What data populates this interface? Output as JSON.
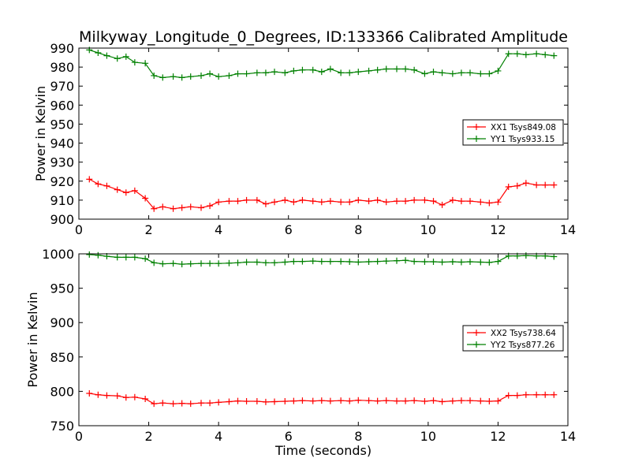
{
  "chart_data": [
    {
      "type": "line",
      "title": "Milkyway_Longitude_0_Degrees, ID:133366 Calibrated Amplitude",
      "xlabel": "",
      "ylabel": "Power in Kelvin",
      "xlim": [
        0,
        14
      ],
      "ylim": [
        900,
        990
      ],
      "xticks": [
        0,
        2,
        4,
        6,
        8,
        10,
        12,
        14
      ],
      "yticks": [
        900,
        910,
        920,
        930,
        940,
        950,
        960,
        970,
        980,
        990
      ],
      "grid": false,
      "legend_position": "center-right",
      "x": [
        0.3,
        0.55,
        0.8,
        1.1,
        1.35,
        1.6,
        1.9,
        2.15,
        2.4,
        2.7,
        2.95,
        3.2,
        3.5,
        3.75,
        4.0,
        4.3,
        4.55,
        4.8,
        5.1,
        5.35,
        5.6,
        5.9,
        6.15,
        6.4,
        6.7,
        6.95,
        7.2,
        7.5,
        7.75,
        8.0,
        8.3,
        8.55,
        8.8,
        9.1,
        9.35,
        9.6,
        9.9,
        10.15,
        10.4,
        10.7,
        10.95,
        11.2,
        11.5,
        11.75,
        12.0,
        12.3,
        12.55,
        12.8,
        13.1,
        13.35,
        13.6
      ],
      "series": [
        {
          "name": "XX1 Tsys849.08",
          "color": "#ff0000",
          "values": [
            921,
            918.5,
            917.5,
            915.5,
            914,
            915,
            911,
            905.5,
            906.5,
            905.5,
            906,
            906.5,
            906,
            907,
            909,
            909.5,
            909.5,
            910,
            910,
            908,
            909,
            910,
            909,
            910,
            909.5,
            909,
            909.5,
            909,
            909,
            910,
            909.5,
            910,
            909,
            909.5,
            909.5,
            910,
            910,
            909.5,
            907.5,
            910,
            909.5,
            909.5,
            909,
            908.5,
            909,
            917,
            917.5,
            919,
            918,
            918,
            918
          ]
        },
        {
          "name": "YY1 Tsys933.15",
          "color": "#008000",
          "values": [
            989,
            987.5,
            986,
            984.5,
            985.5,
            982.5,
            982,
            975.5,
            974.5,
            975,
            974.5,
            975,
            975.5,
            976.5,
            975,
            975.5,
            976.5,
            976.5,
            977,
            977,
            977.5,
            977,
            978,
            978.5,
            978.5,
            977.5,
            979,
            977,
            977,
            977.5,
            978,
            978.5,
            979,
            979,
            979,
            978.5,
            976.5,
            977.5,
            977,
            976.5,
            977,
            977,
            976.5,
            976.5,
            978,
            987,
            987,
            986.5,
            987,
            986.5,
            986
          ]
        }
      ]
    },
    {
      "type": "line",
      "title": "",
      "xlabel": "Time (seconds)",
      "ylabel": "Power in Kelvin",
      "xlim": [
        0,
        14
      ],
      "ylim": [
        750,
        1000
      ],
      "xticks": [
        0,
        2,
        4,
        6,
        8,
        10,
        12,
        14
      ],
      "yticks": [
        750,
        800,
        850,
        900,
        950,
        1000
      ],
      "grid": false,
      "legend_position": "center-right",
      "x": [
        0.3,
        0.55,
        0.8,
        1.1,
        1.35,
        1.6,
        1.9,
        2.15,
        2.4,
        2.7,
        2.95,
        3.2,
        3.5,
        3.75,
        4.0,
        4.3,
        4.55,
        4.8,
        5.1,
        5.35,
        5.6,
        5.9,
        6.15,
        6.4,
        6.7,
        6.95,
        7.2,
        7.5,
        7.75,
        8.0,
        8.3,
        8.55,
        8.8,
        9.1,
        9.35,
        9.6,
        9.9,
        10.15,
        10.4,
        10.7,
        10.95,
        11.2,
        11.5,
        11.75,
        12.0,
        12.3,
        12.55,
        12.8,
        13.1,
        13.35,
        13.6
      ],
      "series": [
        {
          "name": "XX2 Tsys738.64",
          "color": "#ff0000",
          "values": [
            797,
            795,
            794,
            793.5,
            791,
            791.5,
            789,
            782,
            783,
            782,
            782.5,
            782,
            783,
            783,
            784,
            785,
            786,
            785.5,
            785.5,
            784.5,
            785,
            785.5,
            786,
            786.5,
            786,
            786.5,
            786,
            786.5,
            786,
            787,
            786.5,
            786,
            786.5,
            786,
            786,
            786.5,
            785.5,
            786.5,
            785,
            786,
            786.5,
            786.5,
            786,
            785.5,
            786,
            794,
            794,
            795,
            795,
            795,
            795
          ]
        },
        {
          "name": "YY2 Tsys877.26",
          "color": "#008000",
          "values": [
            999,
            998,
            996.5,
            995,
            995,
            995,
            993,
            987,
            985.5,
            986,
            985,
            985.5,
            986,
            986,
            986,
            986.5,
            987,
            988,
            988,
            987,
            987,
            988,
            989,
            989,
            989.5,
            989,
            989,
            989,
            988.5,
            988,
            988.5,
            989,
            989.5,
            990,
            990.5,
            989,
            988.5,
            988.5,
            988,
            988.5,
            988,
            988.5,
            988,
            987.5,
            989,
            997,
            997,
            997.5,
            997,
            997,
            996
          ]
        }
      ]
    }
  ]
}
